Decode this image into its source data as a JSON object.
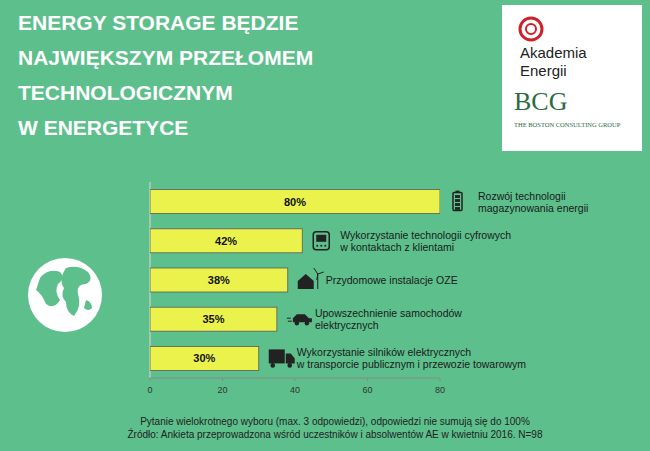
{
  "chart_data": {
    "type": "bar",
    "orientation": "horizontal",
    "title": "ENERGY STORAGE BĘDZIE\nNAJWIĘKSZYM PRZEŁOMEM\nTECHNOLOGICZNYM\nW ENERGETYCE",
    "categories": [
      "Rozwój technologii\nmagazynowania energii",
      "Wykorzystanie technologii cyfrowych\nw kontaktach z klientami",
      "Przydomowe instalacje OZE",
      "Upowszechnienie samochodów\nelektrycznych",
      "Wykorzystanie silników elektrycznych\nw transporcie publicznym i przewozie towarowym"
    ],
    "values": [
      80,
      42,
      38,
      35,
      30
    ],
    "value_labels": [
      "80%",
      "42%",
      "38%",
      "35%",
      "30%"
    ],
    "color": "#eaf24b",
    "xlim": [
      0,
      80
    ],
    "xticks": [
      0,
      20,
      40,
      60,
      80
    ],
    "grid": false,
    "data_labels": true,
    "annotations": [
      "Pytanie wielokrotnego wyboru (max. 3 odpowiedzi), odpowiedzi nie sumują się do 100%",
      "Źródło: Ankieta przeprowadzona wśród uczestników i absolwentów AE w kwietniu 2016. N=98"
    ]
  },
  "logo": {
    "akademia": "Akademia\nEnergii",
    "bcg": "BCG",
    "bcg_full": "THE BOSTON CONSULTING GROUP"
  }
}
